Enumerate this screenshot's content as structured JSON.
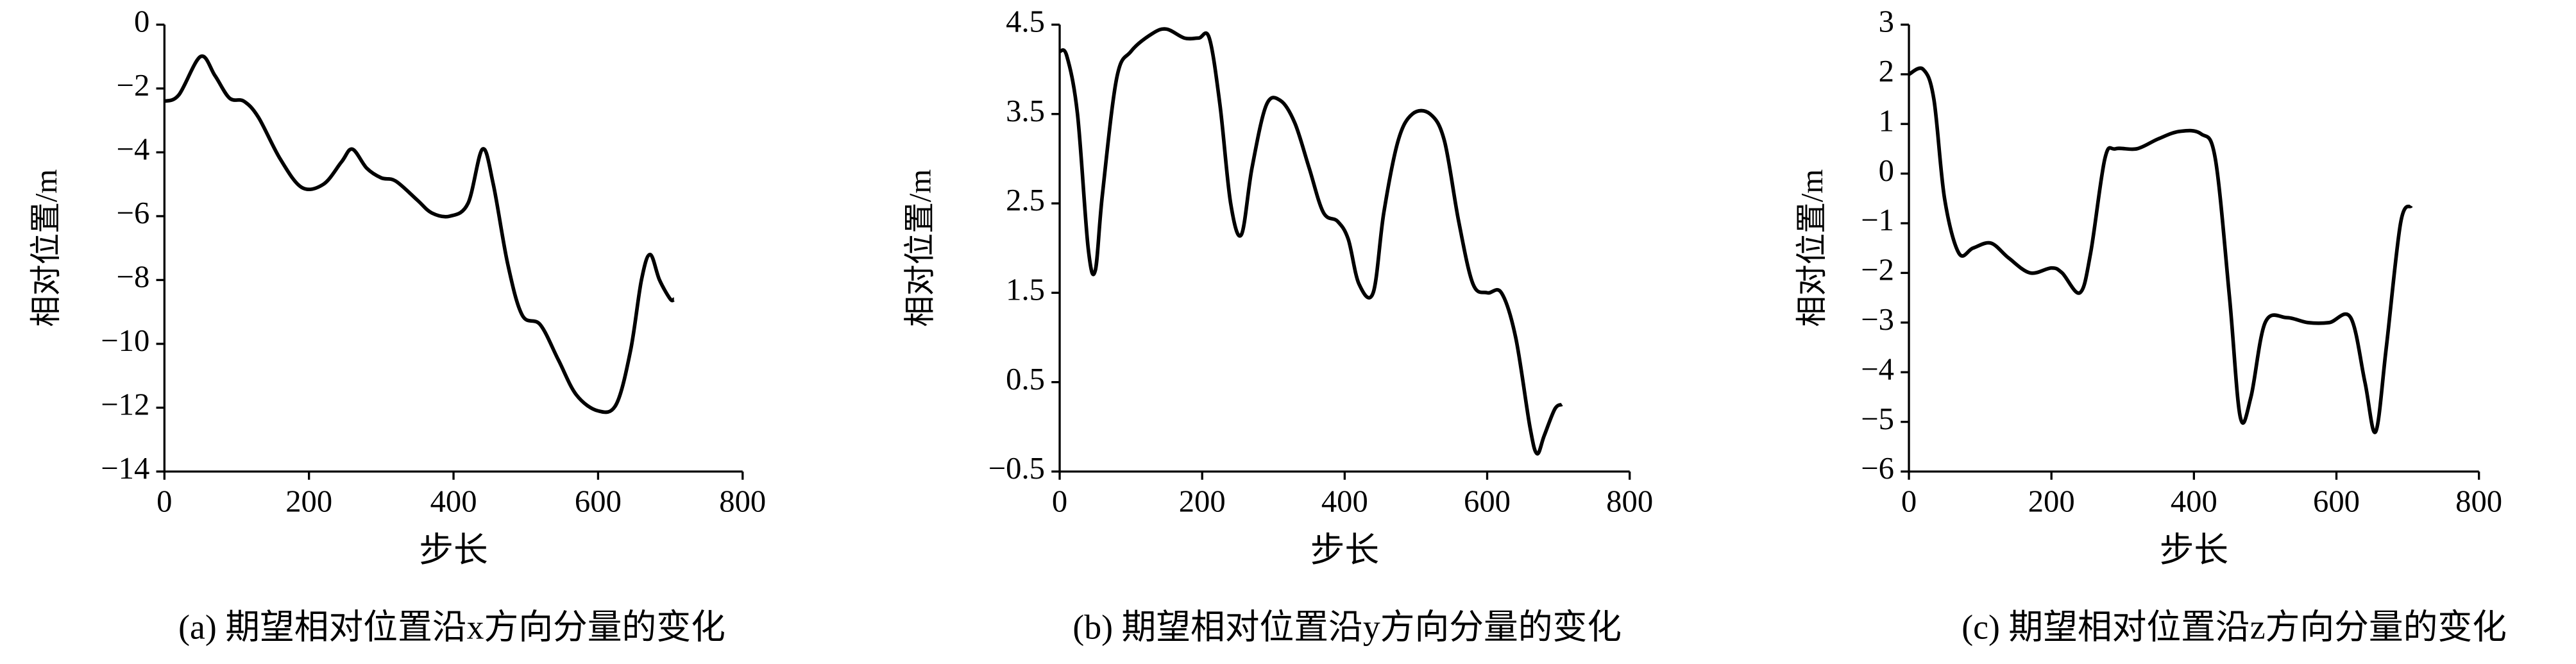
{
  "chart_data": [
    {
      "type": "line",
      "caption": "(a) 期望相对位置沿x方向分量的变化",
      "xlabel": "步长",
      "ylabel": "相对位置/m",
      "xlim": [
        0,
        800
      ],
      "xticks": [
        0,
        200,
        400,
        600,
        800
      ],
      "ylim": [
        -14,
        0
      ],
      "yticks": [
        0,
        {
          "value": -2,
          "label": "−2"
        },
        {
          "value": -4,
          "label": "−4"
        },
        {
          "value": -6,
          "label": "−6"
        },
        {
          "value": -8,
          "label": "−8"
        },
        {
          "value": -10,
          "label": "−10"
        },
        {
          "value": -12,
          "label": "−12"
        },
        {
          "value": -14,
          "label": "−14"
        }
      ],
      "color": "#000000",
      "x": [
        0,
        20,
        50,
        70,
        90,
        110,
        130,
        160,
        190,
        220,
        245,
        260,
        280,
        300,
        320,
        350,
        370,
        395,
        420,
        440,
        455,
        475,
        495,
        520,
        545,
        570,
        600,
        625,
        645,
        660,
        672,
        685,
        700,
        705
      ],
      "values": [
        -2.4,
        -2.2,
        -1.0,
        -1.6,
        -2.3,
        -2.4,
        -2.9,
        -4.2,
        -5.1,
        -5.0,
        -4.3,
        -3.9,
        -4.5,
        -4.8,
        -4.9,
        -5.5,
        -5.9,
        -6.0,
        -5.6,
        -3.9,
        -5.0,
        -7.5,
        -9.1,
        -9.4,
        -10.5,
        -11.6,
        -12.1,
        -11.9,
        -10.2,
        -8.0,
        -7.2,
        -8.0,
        -8.6,
        -8.6
      ]
    },
    {
      "type": "line",
      "caption": "(b) 期望相对位置沿y方向分量的变化",
      "xlabel": "步长",
      "ylabel": "相对位置/m",
      "xlim": [
        0,
        800
      ],
      "xticks": [
        0,
        200,
        400,
        600,
        800
      ],
      "ylim": [
        -0.5,
        4.5
      ],
      "yticks": [
        4.5,
        3.5,
        2.5,
        1.5,
        0.5,
        {
          "value": -0.5,
          "label": "−0.5"
        }
      ],
      "color": "#000000",
      "x": [
        0,
        10,
        25,
        40,
        50,
        60,
        80,
        100,
        130,
        150,
        175,
        195,
        210,
        225,
        240,
        255,
        270,
        290,
        310,
        330,
        350,
        370,
        390,
        405,
        420,
        440,
        455,
        475,
        495,
        520,
        540,
        560,
        580,
        600,
        620,
        640,
        660,
        670,
        680,
        695,
        705
      ],
      "values": [
        4.2,
        4.15,
        3.5,
        2.0,
        1.75,
        2.6,
        3.9,
        4.2,
        4.4,
        4.45,
        4.35,
        4.35,
        4.35,
        3.6,
        2.5,
        2.15,
        2.9,
        3.6,
        3.65,
        3.4,
        2.9,
        2.4,
        2.3,
        2.1,
        1.6,
        1.5,
        2.4,
        3.2,
        3.5,
        3.5,
        3.2,
        2.3,
        1.6,
        1.5,
        1.5,
        1.0,
        0.0,
        -0.3,
        -0.1,
        0.2,
        0.25
      ]
    },
    {
      "type": "line",
      "caption": "(c) 期望相对位置沿z方向分量的变化",
      "xlabel": "步长",
      "ylabel": "相对位置/m",
      "xlim": [
        0,
        800
      ],
      "xticks": [
        0,
        200,
        400,
        600,
        800
      ],
      "ylim": [
        -6,
        3
      ],
      "yticks": [
        3,
        2,
        1,
        0,
        {
          "value": -1,
          "label": "−1"
        },
        {
          "value": -2,
          "label": "−2"
        },
        {
          "value": -3,
          "label": "−3"
        },
        {
          "value": -4,
          "label": "−4"
        },
        {
          "value": -5,
          "label": "−5"
        },
        {
          "value": -6,
          "label": "−6"
        }
      ],
      "color": "#000000",
      "x": [
        0,
        20,
        35,
        50,
        70,
        90,
        115,
        140,
        170,
        200,
        215,
        240,
        255,
        275,
        290,
        320,
        350,
        380,
        410,
        430,
        450,
        465,
        480,
        500,
        530,
        560,
        590,
        620,
        640,
        655,
        670,
        690,
        705
      ],
      "values": [
        2.0,
        2.1,
        1.5,
        -0.5,
        -1.6,
        -1.5,
        -1.4,
        -1.7,
        -2.0,
        -1.9,
        -2.0,
        -2.4,
        -1.6,
        0.3,
        0.5,
        0.5,
        0.7,
        0.85,
        0.8,
        0.3,
        -2.5,
        -4.9,
        -4.5,
        -3.0,
        -2.9,
        -3.0,
        -3.0,
        -2.9,
        -4.2,
        -5.2,
        -3.5,
        -1.0,
        -0.65
      ]
    }
  ]
}
